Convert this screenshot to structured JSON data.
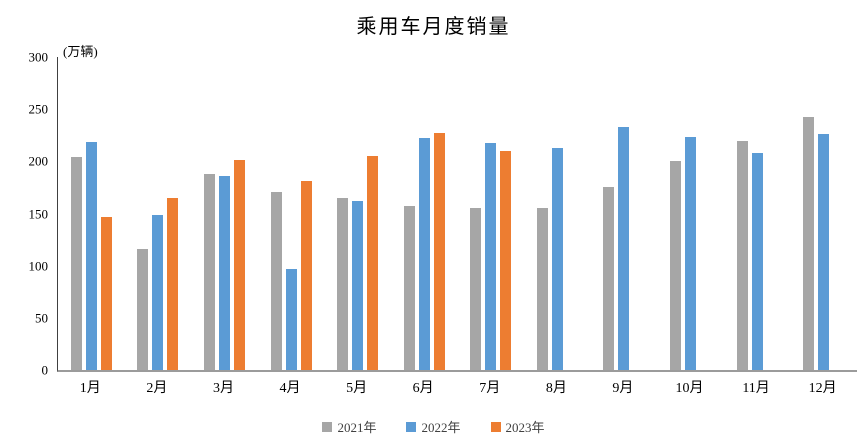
{
  "title": "乘用车月度销量",
  "unit_label": "(万辆)",
  "chart_data": {
    "type": "bar",
    "title": "乘用车月度销量",
    "ylabel": "(万辆)",
    "xlabel": "",
    "categories": [
      "1月",
      "2月",
      "3月",
      "4月",
      "5月",
      "6月",
      "7月",
      "8月",
      "9月",
      "10月",
      "11月",
      "12月"
    ],
    "series": [
      {
        "name": "2021年",
        "color": "#A6A6A6",
        "values": [
          204.5,
          115.6,
          187.4,
          170.4,
          164.6,
          156.9,
          155.1,
          155.2,
          175.1,
          200.7,
          219.2,
          242.2
        ]
      },
      {
        "name": "2022年",
        "color": "#5B9BD5",
        "values": [
          218.6,
          148.7,
          186.4,
          96.5,
          162.3,
          222.2,
          217.4,
          212.5,
          233.2,
          223.1,
          207.9,
          226.3
        ]
      },
      {
        "name": "2023年",
        "color": "#ED7D31",
        "values": [
          146.9,
          165.3,
          201.7,
          181.1,
          205.1,
          226.8,
          210.0,
          null,
          null,
          null,
          null,
          null
        ]
      }
    ],
    "ylim": [
      0,
      300
    ],
    "ytick_step": 50,
    "ytick_labels": [
      "0",
      "50",
      "100",
      "150",
      "200",
      "250",
      "300"
    ],
    "grid": false,
    "legend_position": "bottom",
    "axis_colors": {
      "y_axis_line": "#404040",
      "x_axis_line": "#9b9b9b"
    }
  }
}
